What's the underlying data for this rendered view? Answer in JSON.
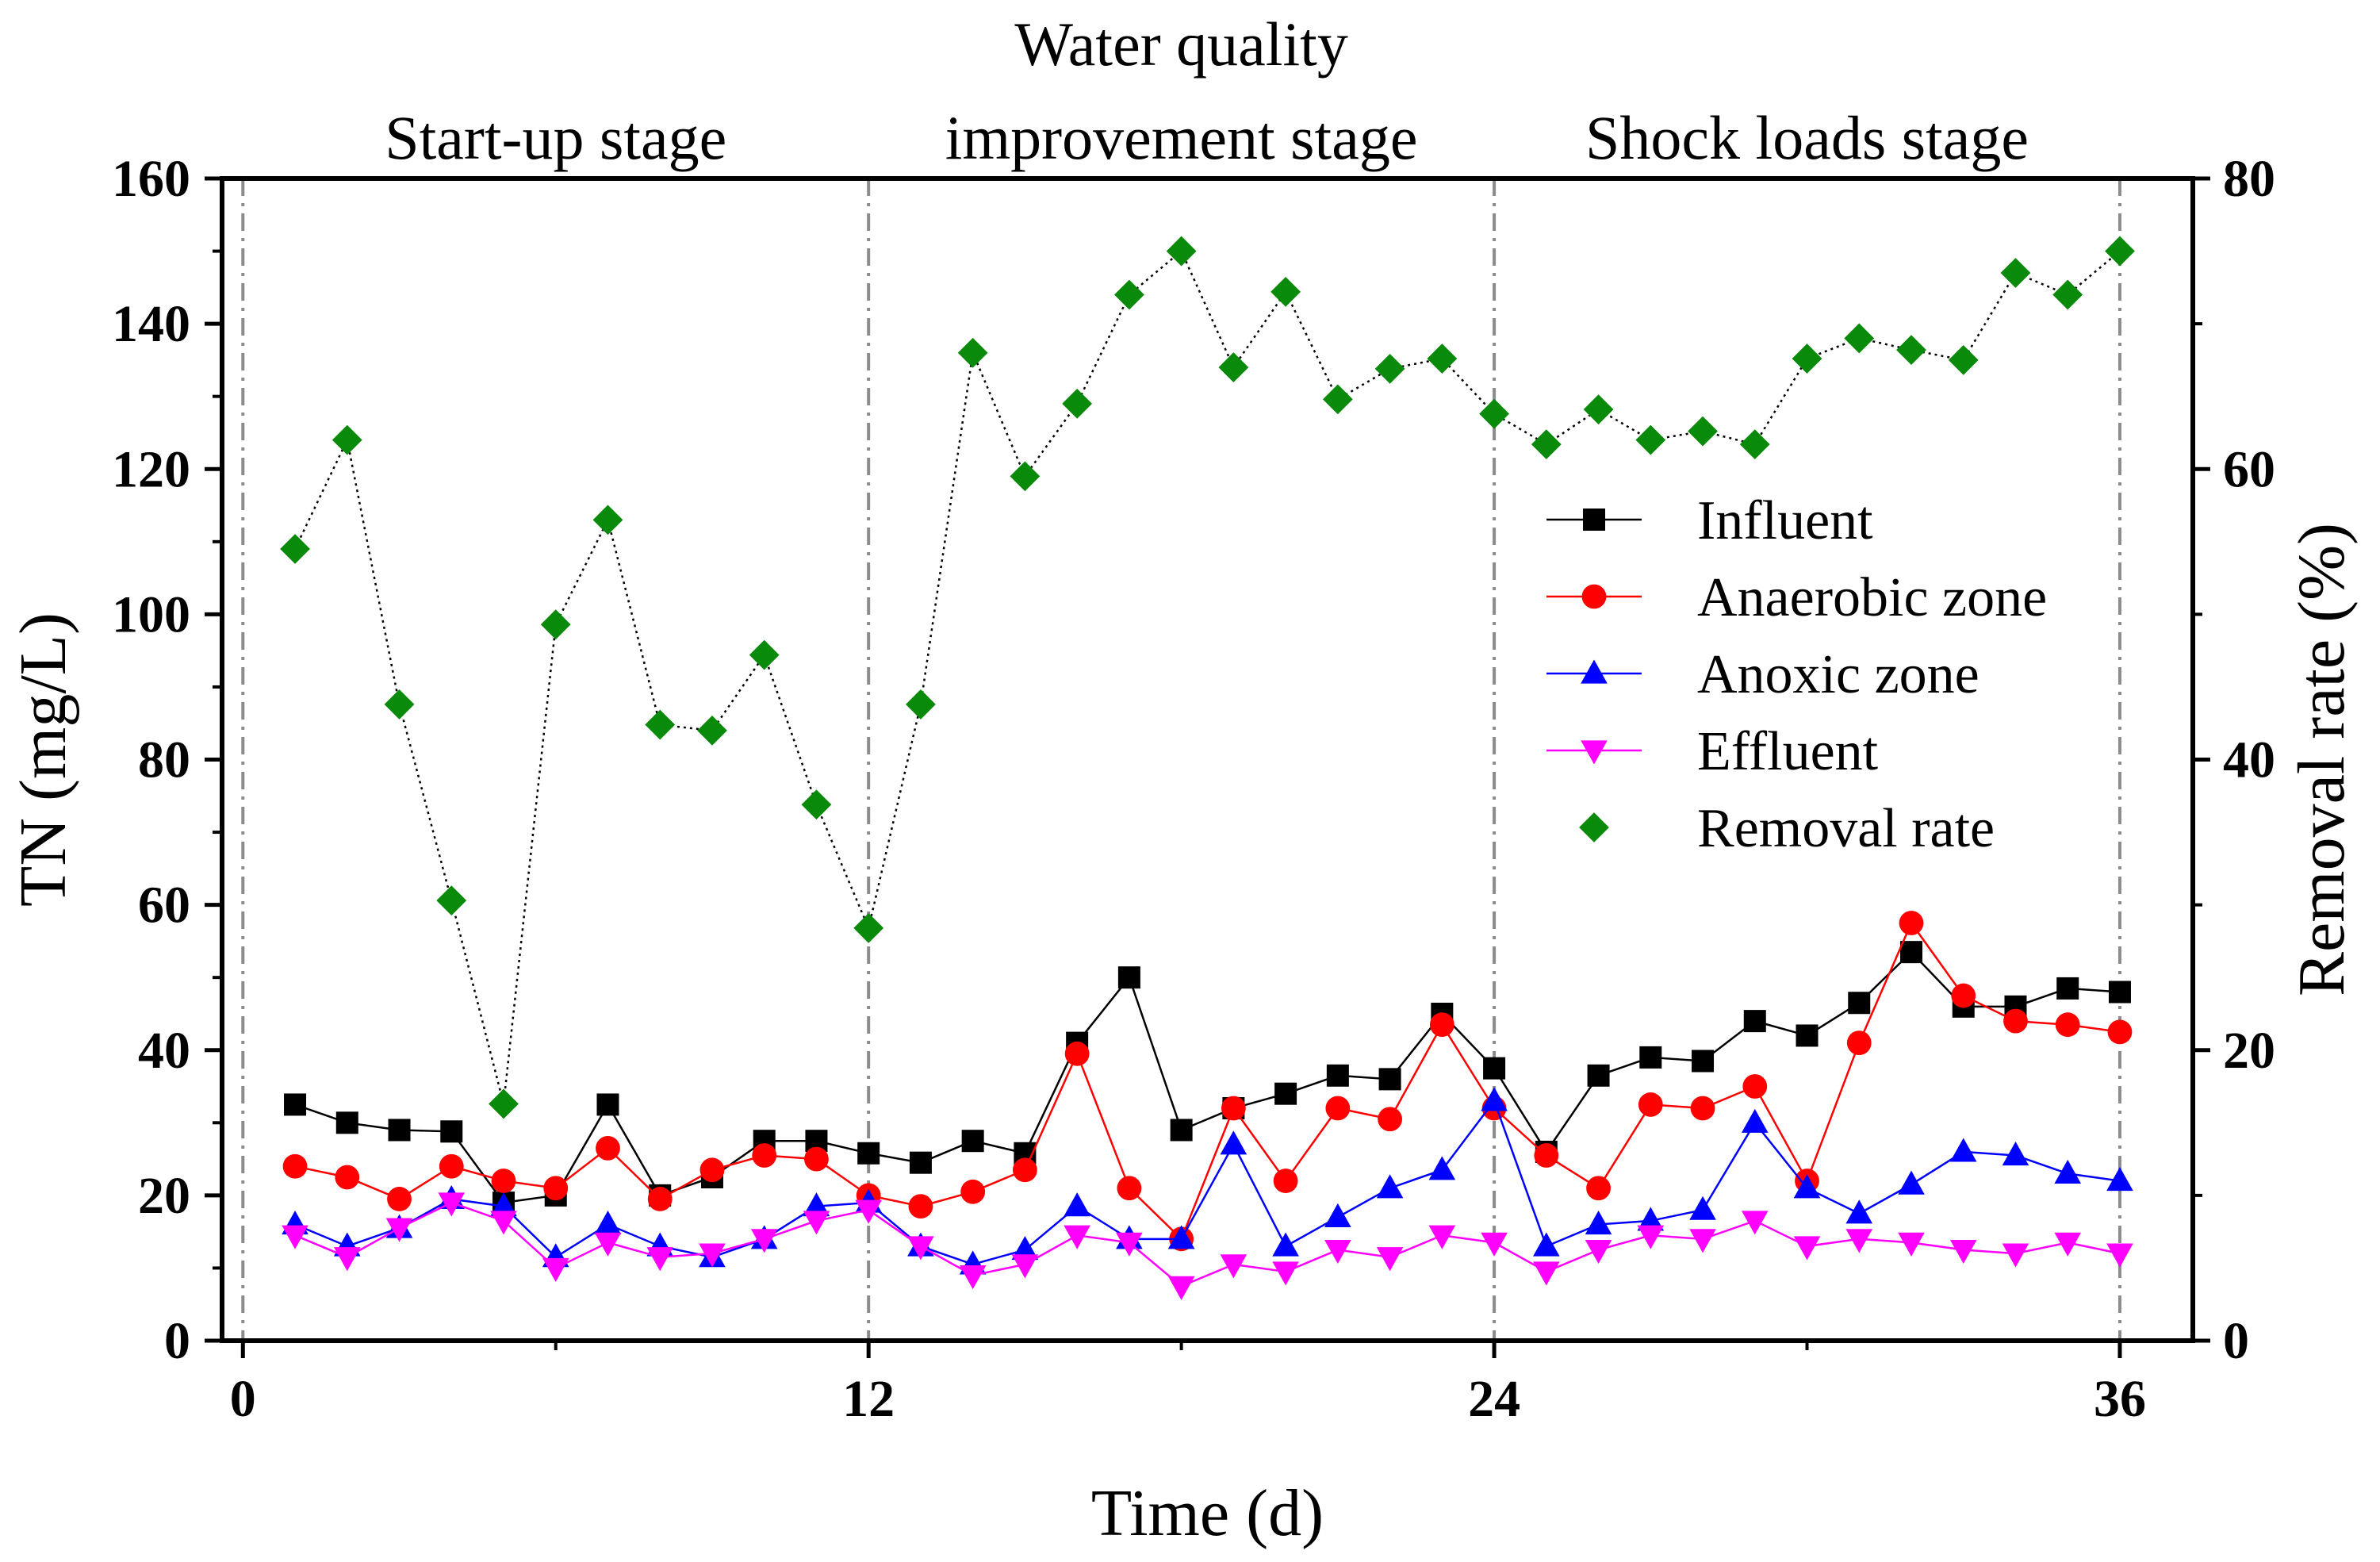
{
  "chart_data": {
    "type": "line",
    "x_axis": {
      "label": "Time (d)",
      "min": -0.4,
      "max": 37.4,
      "ticks": [
        0,
        12,
        24,
        36
      ]
    },
    "y_left": {
      "label": "TN (mg/L)",
      "min": 0,
      "max": 160,
      "ticks": [
        0,
        20,
        40,
        60,
        80,
        100,
        120,
        140,
        160
      ]
    },
    "y_right": {
      "label": "Removal rate (%)",
      "min": 0,
      "max": 80,
      "ticks": [
        0,
        20,
        40,
        60,
        80
      ]
    },
    "stage_boundaries": [
      0,
      12,
      24,
      36
    ],
    "stages": [
      {
        "lines": [
          "Start-up stage"
        ]
      },
      {
        "lines": [
          "Water quality",
          "improvement stage"
        ]
      },
      {
        "lines": [
          "Shock loads stage"
        ]
      }
    ],
    "x": [
      1,
      2,
      3,
      4,
      5,
      6,
      7,
      8,
      9,
      10,
      11,
      12,
      13,
      14,
      15,
      16,
      17,
      18,
      19,
      20,
      21,
      22,
      23,
      24,
      25,
      26,
      27,
      28,
      29,
      30,
      31,
      32,
      33,
      34,
      35,
      36
    ],
    "series": [
      {
        "name": "Influent",
        "axis": "left",
        "color": "#000000",
        "marker": "square",
        "line_style": "solid",
        "values": [
          32.5,
          30,
          29,
          28.8,
          19,
          20,
          32.5,
          20,
          22.5,
          27.5,
          27.5,
          25.8,
          24.5,
          27.5,
          25.8,
          41,
          50,
          29,
          32,
          34,
          36.5,
          36,
          45,
          37.5,
          26,
          36.5,
          39,
          38.5,
          44,
          42,
          46.5,
          53.5,
          46,
          46,
          48.5,
          48
        ]
      },
      {
        "name": "Anaerobic zone",
        "axis": "left",
        "color": "#ff0000",
        "marker": "circle",
        "line_style": "solid",
        "values": [
          24,
          22.5,
          19.5,
          24,
          22,
          21,
          26.5,
          19.5,
          23.5,
          25.5,
          25,
          20,
          18.5,
          20.5,
          23.5,
          39.5,
          21,
          14,
          32,
          22,
          32,
          30.5,
          43.5,
          32,
          25.5,
          21,
          32.5,
          32,
          35,
          22,
          41,
          57.5,
          47.5,
          44,
          43.5,
          42.5
        ]
      },
      {
        "name": "Anoxic zone",
        "axis": "left",
        "color": "#0000ff",
        "marker": "triangle-up",
        "line_style": "solid",
        "values": [
          16,
          13,
          15.5,
          19.5,
          18.5,
          11.5,
          16,
          13,
          11.5,
          14,
          18.5,
          19,
          13,
          10.5,
          12.5,
          18.5,
          14,
          14,
          27,
          13,
          17,
          21,
          23.5,
          33,
          13,
          16,
          16.5,
          18,
          30,
          21,
          17.5,
          21.5,
          26,
          25.5,
          23,
          22
        ]
      },
      {
        "name": "Effluent",
        "axis": "left",
        "color": "#ff00ff",
        "marker": "triangle-down",
        "line_style": "solid",
        "values": [
          14.5,
          11.5,
          15.5,
          19,
          16.5,
          10,
          13.5,
          11.5,
          12,
          14,
          16.5,
          18,
          13,
          9,
          10.5,
          14.5,
          13.5,
          7.5,
          10.5,
          9.5,
          12.5,
          11.5,
          14.5,
          13.5,
          9.5,
          12.5,
          14.5,
          14,
          16.5,
          13,
          14,
          13.5,
          12.5,
          12,
          13.5,
          12
        ]
      },
      {
        "name": "Removal rate",
        "axis": "right",
        "color": "#0a8a0a",
        "marker": "diamond",
        "line_style": "dotted",
        "values": [
          54.5,
          62,
          43.8,
          30.3,
          16.3,
          49.3,
          56.5,
          42.4,
          42,
          47.2,
          36.9,
          28.4,
          43.8,
          68,
          59.5,
          64.5,
          72,
          75,
          67,
          72.2,
          64.8,
          66.9,
          67.6,
          63.8,
          61.7,
          64.1,
          62,
          62.6,
          61.7,
          67.6,
          69,
          68.2,
          67.5,
          73.5,
          72,
          75
        ]
      }
    ]
  }
}
